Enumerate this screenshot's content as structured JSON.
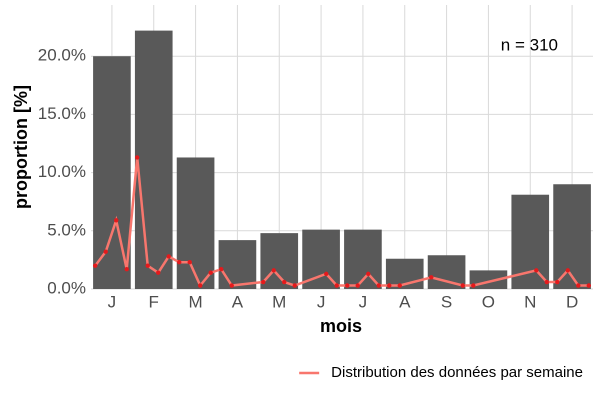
{
  "chart_data": {
    "type": "bar",
    "y_label": "proportion [%]",
    "x_label": "mois",
    "annotation": "n = 310",
    "categories": [
      "J",
      "F",
      "M",
      "A",
      "M",
      "J",
      "J",
      "A",
      "S",
      "O",
      "N",
      "D"
    ],
    "values": [
      20.0,
      22.2,
      11.3,
      4.2,
      4.8,
      5.1,
      5.1,
      2.6,
      2.9,
      1.6,
      8.1,
      9.0
    ],
    "color": "#595959",
    "ylim": [
      0,
      24.4
    ],
    "yticks": [
      {
        "value": 0,
        "label": "0.0%"
      },
      {
        "value": 5,
        "label": "5.0%"
      },
      {
        "value": 10,
        "label": "10.0%"
      },
      {
        "value": 15,
        "label": "15.0%"
      },
      {
        "value": 20,
        "label": "20.0%"
      }
    ],
    "grid": true,
    "line": {
      "name": "Distribution des données par semaine",
      "color": "#f8766d",
      "point_color": "#e41a1c",
      "xlim": [
        0.6,
        48.4
      ],
      "x": [
        1,
        2,
        3,
        4,
        5,
        6,
        7,
        8,
        9,
        10,
        11,
        12,
        13,
        14,
        17,
        18,
        19,
        20,
        23,
        24,
        25,
        26,
        27,
        28,
        29,
        30,
        33,
        36,
        37,
        43,
        44,
        45,
        46,
        47,
        48
      ],
      "values": [
        2.0,
        3.2,
        5.9,
        1.7,
        11.3,
        2.0,
        1.4,
        2.8,
        2.3,
        2.3,
        0.3,
        1.4,
        1.7,
        0.3,
        0.6,
        1.6,
        0.6,
        0.3,
        1.3,
        0.3,
        0.3,
        0.3,
        1.3,
        0.3,
        0.3,
        0.3,
        1.0,
        0.3,
        0.3,
        1.6,
        0.6,
        0.6,
        1.6,
        0.3,
        0.3
      ]
    },
    "legend": "bottom-right"
  }
}
